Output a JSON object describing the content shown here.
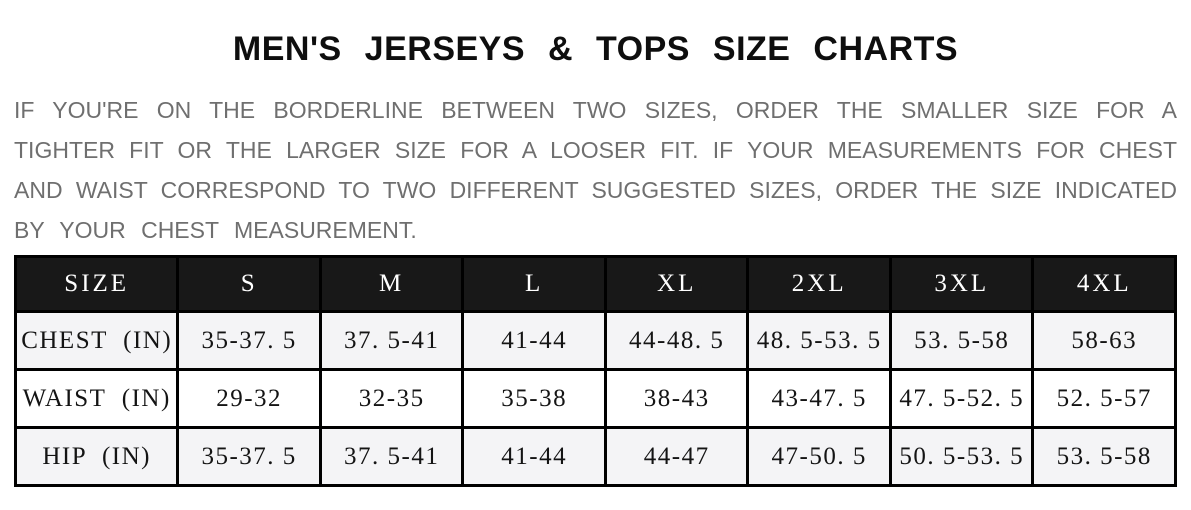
{
  "title": "MEN'S JERSEYS & TOPS SIZE CHARTS",
  "intro": {
    "lines": [
      "IF YOU'RE ON THE BORDERLINE BETWEEN TWO SIZES, ORDER THE SMALLER SIZE FOR A",
      "TIGHTER FIT OR THE LARGER SIZE FOR A LOOSER FIT. IF YOUR MEASUREMENTS FOR CHEST",
      "AND WAIST CORRESPOND TO TWO DIFFERENT SUGGESTED SIZES, ORDER THE SIZE INDICATED",
      "BY YOUR CHEST MEASUREMENT."
    ]
  },
  "size_table": {
    "columns": [
      "SIZE",
      "S",
      "M",
      "L",
      "XL",
      "2XL",
      "3XL",
      "4XL"
    ],
    "rows": [
      {
        "label": "CHEST (IN)",
        "values": [
          "35-37. 5",
          "37. 5-41",
          "41-44",
          "44-48. 5",
          "48. 5-53. 5",
          "53. 5-58",
          "58-63"
        ]
      },
      {
        "label": "WAIST (IN)",
        "values": [
          "29-32",
          "32-35",
          "35-38",
          "38-43",
          "43-47. 5",
          "47. 5-52. 5",
          "52. 5-57"
        ]
      },
      {
        "label": "HIP (IN)",
        "values": [
          "35-37. 5",
          "37. 5-41",
          "41-44",
          "44-47",
          "47-50. 5",
          "50. 5-53. 5",
          "53. 5-58"
        ]
      }
    ]
  },
  "colors": {
    "header_bg": "#181818",
    "header_text": "#ffffff",
    "alt_row_bg": "#f4f4f6",
    "border": "#000000",
    "title_text": "#0e0e0e",
    "intro_text": "#6f6f6f"
  }
}
